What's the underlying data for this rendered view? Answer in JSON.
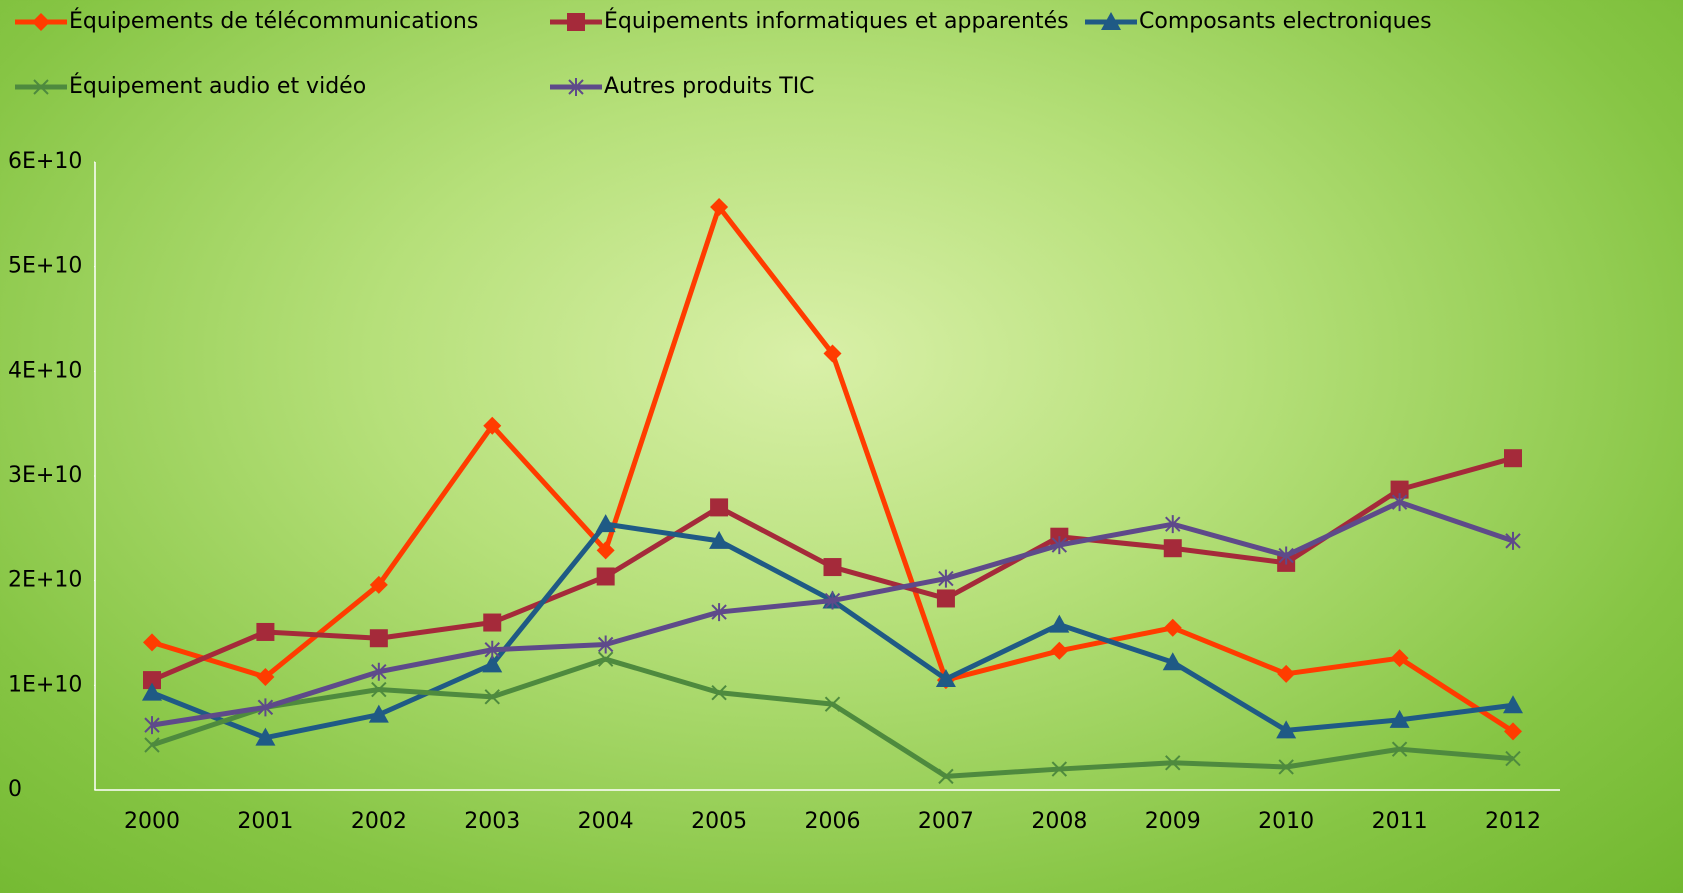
{
  "chart_data": {
    "type": "line",
    "categories": [
      "2000",
      "2001",
      "2002",
      "2003",
      "2004",
      "2005",
      "2006",
      "2007",
      "2008",
      "2009",
      "2010",
      "2011",
      "2012"
    ],
    "series": [
      {
        "name": "Équipements de télécommunications",
        "color": "#ff3c00",
        "marker": "diamond",
        "values": [
          14100000000,
          10800000000,
          19600000000,
          34800000000,
          22900000000,
          55700000000,
          41700000000,
          10500000000,
          13300000000,
          15500000000,
          11100000000,
          12600000000,
          5600000000
        ]
      },
      {
        "name": "Équipements informatiques et apparentés",
        "color": "#a52a3a",
        "marker": "square",
        "values": [
          10500000000,
          15100000000,
          14500000000,
          16000000000,
          20400000000,
          27000000000,
          21300000000,
          18300000000,
          24200000000,
          23100000000,
          21700000000,
          28700000000,
          31700000000
        ]
      },
      {
        "name": "Composants electroniques",
        "color": "#1f5a85",
        "marker": "triangle",
        "values": [
          9300000000,
          5000000000,
          7200000000,
          12000000000,
          25400000000,
          23800000000,
          18100000000,
          10600000000,
          15800000000,
          12200000000,
          5700000000,
          6700000000,
          8100000000
        ]
      },
      {
        "name": "Équipement audio et vidéo",
        "color": "#4e8a3e",
        "marker": "x",
        "values": [
          4300000000,
          7900000000,
          9600000000,
          8900000000,
          12500000000,
          9300000000,
          8200000000,
          1300000000,
          2000000000,
          2600000000,
          2200000000,
          3900000000,
          3000000000
        ]
      },
      {
        "name": "Autres produits TIC",
        "color": "#5e4a8a",
        "marker": "star",
        "values": [
          6200000000,
          7900000000,
          11300000000,
          13400000000,
          13900000000,
          17000000000,
          18100000000,
          20200000000,
          23400000000,
          25400000000,
          22400000000,
          27500000000,
          23800000000
        ]
      }
    ],
    "ylim": [
      0,
      60000000000
    ],
    "yticks": [
      0,
      {
        "value": 10000000000,
        "label": "1E+10"
      },
      {
        "value": 20000000000,
        "label": "2E+10"
      },
      {
        "value": 30000000000,
        "label": "3E+10"
      },
      {
        "value": 40000000000,
        "label": "4E+10"
      },
      {
        "value": 50000000000,
        "label": "5E+10"
      },
      {
        "value": 60000000000,
        "label": "6E+10"
      }
    ],
    "grid": false,
    "legend": "top"
  }
}
